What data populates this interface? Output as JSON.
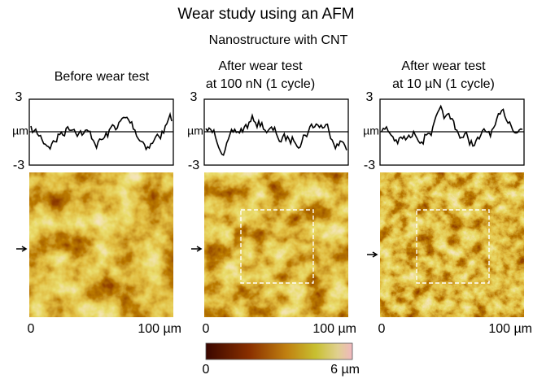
{
  "title": "Wear study using an AFM",
  "subtitle": "Nanostructure with CNT",
  "panels": [
    {
      "heading": [
        "Before wear test"
      ]
    },
    {
      "heading": [
        "After wear test",
        "at 100 nN (1 cycle)"
      ]
    },
    {
      "heading": [
        "After wear test",
        "at 10 µN (1 cycle)"
      ]
    }
  ],
  "profile_axis": {
    "top": "3",
    "unit": "µm",
    "bottom": "-3"
  },
  "image_axis": {
    "start": "0",
    "end": "100 µm"
  },
  "colorbar": {
    "min": "0",
    "max": "6 µm"
  }
}
